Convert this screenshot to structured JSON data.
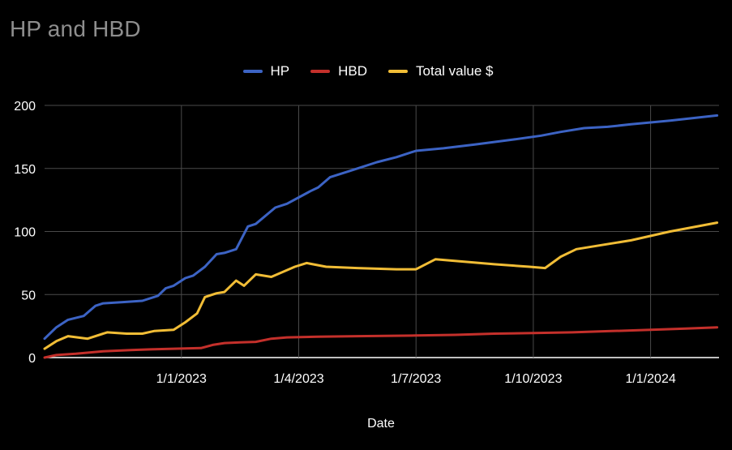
{
  "chart_data": {
    "type": "line",
    "title": "HP and HBD",
    "xlabel": "Date",
    "ylabel": "",
    "ylim": [
      0,
      200
    ],
    "y_ticks": [
      0,
      50,
      100,
      150,
      200
    ],
    "x_ticks": [
      "1/1/2023",
      "1/4/2023",
      "1/7/2023",
      "1/10/2023",
      "1/1/2024"
    ],
    "x_tick_positions": [
      3.5,
      6.5,
      9.5,
      12.5,
      15.5
    ],
    "x_range": [
      0,
      17.25
    ],
    "grid": true,
    "legend_position": "top-center",
    "series": [
      {
        "name": "HP",
        "color": "#3c63c4",
        "points": [
          [
            0.0,
            15
          ],
          [
            0.3,
            24
          ],
          [
            0.6,
            30
          ],
          [
            1.0,
            33
          ],
          [
            1.3,
            41
          ],
          [
            1.5,
            43
          ],
          [
            2.0,
            44
          ],
          [
            2.5,
            45
          ],
          [
            2.9,
            49
          ],
          [
            3.1,
            55
          ],
          [
            3.3,
            57
          ],
          [
            3.6,
            63
          ],
          [
            3.8,
            65
          ],
          [
            4.1,
            72
          ],
          [
            4.4,
            82
          ],
          [
            4.6,
            83
          ],
          [
            4.9,
            86
          ],
          [
            5.2,
            104
          ],
          [
            5.4,
            106
          ],
          [
            5.9,
            119
          ],
          [
            6.2,
            122
          ],
          [
            6.5,
            127
          ],
          [
            6.8,
            132
          ],
          [
            7.0,
            135
          ],
          [
            7.3,
            143
          ],
          [
            7.8,
            148
          ],
          [
            8.5,
            155
          ],
          [
            9.0,
            159
          ],
          [
            9.5,
            164
          ],
          [
            10.2,
            166
          ],
          [
            11.0,
            169
          ],
          [
            12.0,
            173
          ],
          [
            12.7,
            176
          ],
          [
            13.2,
            179
          ],
          [
            13.8,
            182
          ],
          [
            14.4,
            183
          ],
          [
            15.0,
            185
          ],
          [
            16.0,
            188
          ],
          [
            17.2,
            192
          ]
        ]
      },
      {
        "name": "HBD",
        "color": "#c4302b",
        "points": [
          [
            0.0,
            0
          ],
          [
            0.3,
            2
          ],
          [
            0.8,
            3
          ],
          [
            1.5,
            5
          ],
          [
            2.2,
            6
          ],
          [
            2.7,
            6.5
          ],
          [
            3.3,
            7
          ],
          [
            4.0,
            7.5
          ],
          [
            4.3,
            10
          ],
          [
            4.6,
            11.5
          ],
          [
            5.0,
            12
          ],
          [
            5.4,
            12.5
          ],
          [
            5.8,
            15
          ],
          [
            6.2,
            16
          ],
          [
            7.0,
            16.5
          ],
          [
            8.0,
            17
          ],
          [
            9.5,
            17.5
          ],
          [
            10.5,
            18
          ],
          [
            11.5,
            19
          ],
          [
            12.5,
            19.5
          ],
          [
            13.5,
            20
          ],
          [
            14.5,
            21
          ],
          [
            15.5,
            22
          ],
          [
            16.4,
            23
          ],
          [
            17.2,
            24
          ]
        ]
      },
      {
        "name": "Total value $",
        "color": "#f1bd36",
        "points": [
          [
            0.0,
            7
          ],
          [
            0.3,
            13
          ],
          [
            0.6,
            17
          ],
          [
            1.1,
            15
          ],
          [
            1.6,
            20
          ],
          [
            2.1,
            19
          ],
          [
            2.5,
            19
          ],
          [
            2.8,
            21
          ],
          [
            3.3,
            22
          ],
          [
            3.6,
            28
          ],
          [
            3.9,
            35
          ],
          [
            4.1,
            48
          ],
          [
            4.4,
            51
          ],
          [
            4.6,
            52
          ],
          [
            4.9,
            61
          ],
          [
            5.1,
            57
          ],
          [
            5.4,
            66
          ],
          [
            5.8,
            64
          ],
          [
            6.4,
            72
          ],
          [
            6.7,
            75
          ],
          [
            7.2,
            72
          ],
          [
            8.0,
            71
          ],
          [
            9.0,
            70
          ],
          [
            9.5,
            70
          ],
          [
            10.0,
            78
          ],
          [
            11.5,
            74
          ],
          [
            12.4,
            72
          ],
          [
            12.8,
            71
          ],
          [
            13.2,
            80
          ],
          [
            13.6,
            86
          ],
          [
            14.0,
            88
          ],
          [
            15.0,
            93
          ],
          [
            16.0,
            100
          ],
          [
            17.2,
            107
          ]
        ]
      }
    ]
  }
}
